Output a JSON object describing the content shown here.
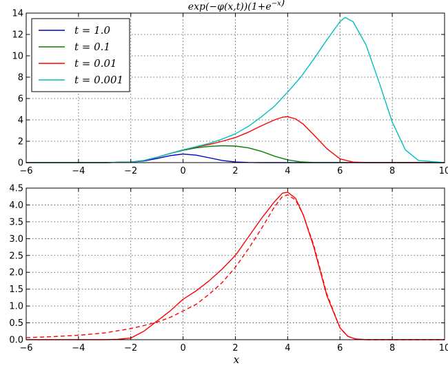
{
  "chart_data": [
    {
      "type": "line",
      "title": "exp(−φ(x,t))(1+e^−x)",
      "xlabel": "",
      "ylabel": "",
      "xlim": [
        -6,
        10
      ],
      "ylim": [
        0,
        14
      ],
      "xticks": [
        -6,
        -4,
        -2,
        0,
        2,
        4,
        6,
        8,
        10
      ],
      "yticks": [
        0,
        2,
        4,
        6,
        8,
        10,
        12,
        14
      ],
      "xtick_labels": [
        "−6",
        "−4",
        "−2",
        "0",
        "2",
        "4",
        "6",
        "8",
        "10"
      ],
      "ytick_labels": [
        "0",
        "2",
        "4",
        "6",
        "8",
        "10",
        "12",
        "14"
      ],
      "grid": true,
      "legend_position": "top-left",
      "series": [
        {
          "name": "t = 1.0",
          "color": "#0000cc",
          "dashed": false,
          "x": [
            -6,
            -3,
            -2,
            -1.5,
            -1,
            -0.5,
            0,
            0.5,
            1,
            1.5,
            2,
            2.5,
            3,
            10
          ],
          "y": [
            0,
            0,
            0.05,
            0.15,
            0.38,
            0.65,
            0.8,
            0.7,
            0.45,
            0.2,
            0.06,
            0.01,
            0,
            0
          ]
        },
        {
          "name": "t = 0.1",
          "color": "#008000",
          "dashed": false,
          "x": [
            -6,
            -3,
            -2,
            -1.5,
            -1,
            -0.5,
            0,
            0.5,
            1,
            1.5,
            2,
            2.5,
            3,
            3.5,
            4,
            4.5,
            5,
            10
          ],
          "y": [
            0,
            0,
            0.05,
            0.2,
            0.5,
            0.85,
            1.15,
            1.38,
            1.52,
            1.58,
            1.55,
            1.38,
            1.05,
            0.6,
            0.25,
            0.07,
            0.01,
            0
          ]
        },
        {
          "name": "t = 0.01",
          "color": "#ff0000",
          "dashed": false,
          "x": [
            -6,
            -3,
            -2,
            -1.5,
            -1,
            -0.5,
            0,
            0.5,
            1,
            1.5,
            2,
            2.5,
            3,
            3.5,
            3.8,
            4,
            4.3,
            4.6,
            5,
            5.5,
            6,
            6.5,
            7,
            10
          ],
          "y": [
            0,
            0,
            0.05,
            0.2,
            0.5,
            0.85,
            1.2,
            1.45,
            1.7,
            2.0,
            2.35,
            2.85,
            3.45,
            4.0,
            4.25,
            4.3,
            4.1,
            3.6,
            2.6,
            1.3,
            0.35,
            0.05,
            0,
            0
          ]
        },
        {
          "name": "t = 0.001",
          "color": "#00bfbf",
          "dashed": false,
          "x": [
            -6,
            -3,
            -2,
            -1.5,
            -1,
            -0.5,
            0,
            0.5,
            1,
            1.5,
            2,
            2.5,
            3,
            3.5,
            4,
            4.5,
            5,
            5.5,
            6,
            6.2,
            6.5,
            7,
            7.5,
            8,
            8.5,
            9,
            10
          ],
          "y": [
            0,
            0,
            0.05,
            0.2,
            0.5,
            0.85,
            1.2,
            1.5,
            1.8,
            2.2,
            2.7,
            3.4,
            4.3,
            5.3,
            6.6,
            8.0,
            9.7,
            11.5,
            13.2,
            13.6,
            13.2,
            11.0,
            7.5,
            3.8,
            1.2,
            0.2,
            0
          ]
        }
      ]
    },
    {
      "type": "line",
      "title": "",
      "xlabel": "x",
      "ylabel": "",
      "xlim": [
        -6,
        10
      ],
      "ylim": [
        0,
        4.5
      ],
      "xticks": [
        -6,
        -4,
        -2,
        0,
        2,
        4,
        6,
        8,
        10
      ],
      "yticks": [
        0,
        0.5,
        1,
        1.5,
        2,
        2.5,
        3,
        3.5,
        4,
        4.5
      ],
      "xtick_labels": [
        "−6",
        "−4",
        "−2",
        "0",
        "2",
        "4",
        "6",
        "8",
        "10"
      ],
      "ytick_labels": [
        "0.0",
        "0.5",
        "1.0",
        "1.5",
        "2.0",
        "2.5",
        "3.0",
        "3.5",
        "4.0",
        "4.5"
      ],
      "grid": true,
      "legend_position": "none",
      "series": [
        {
          "name": "",
          "color": "#ff0000",
          "dashed": false,
          "x": [
            -6,
            -3,
            -2.5,
            -2,
            -1.5,
            -1,
            -0.5,
            0,
            0.5,
            1,
            1.5,
            2,
            2.5,
            3,
            3.5,
            3.8,
            4,
            4.3,
            4.6,
            5,
            5.5,
            6,
            6.3,
            6.6,
            7,
            10
          ],
          "y": [
            0,
            0,
            0.01,
            0.05,
            0.25,
            0.55,
            0.85,
            1.2,
            1.45,
            1.75,
            2.1,
            2.5,
            3.05,
            3.6,
            4.1,
            4.35,
            4.38,
            4.2,
            3.7,
            2.75,
            1.3,
            0.35,
            0.1,
            0.02,
            0,
            0
          ]
        },
        {
          "name": "",
          "color": "#ff0000",
          "dashed": true,
          "x": [
            -6,
            -5,
            -4,
            -3,
            -2,
            -1.5,
            -1,
            -0.5,
            0,
            0.5,
            1,
            1.5,
            2,
            2.5,
            3,
            3.5,
            3.8,
            4,
            4.3,
            4.6,
            5,
            5.5,
            6,
            6.3,
            6.6,
            7,
            10
          ],
          "y": [
            0.06,
            0.09,
            0.13,
            0.2,
            0.33,
            0.42,
            0.52,
            0.66,
            0.85,
            1.05,
            1.35,
            1.7,
            2.15,
            2.7,
            3.3,
            3.95,
            4.25,
            4.3,
            4.15,
            3.7,
            2.8,
            1.35,
            0.35,
            0.1,
            0.02,
            0,
            0
          ]
        }
      ]
    }
  ]
}
